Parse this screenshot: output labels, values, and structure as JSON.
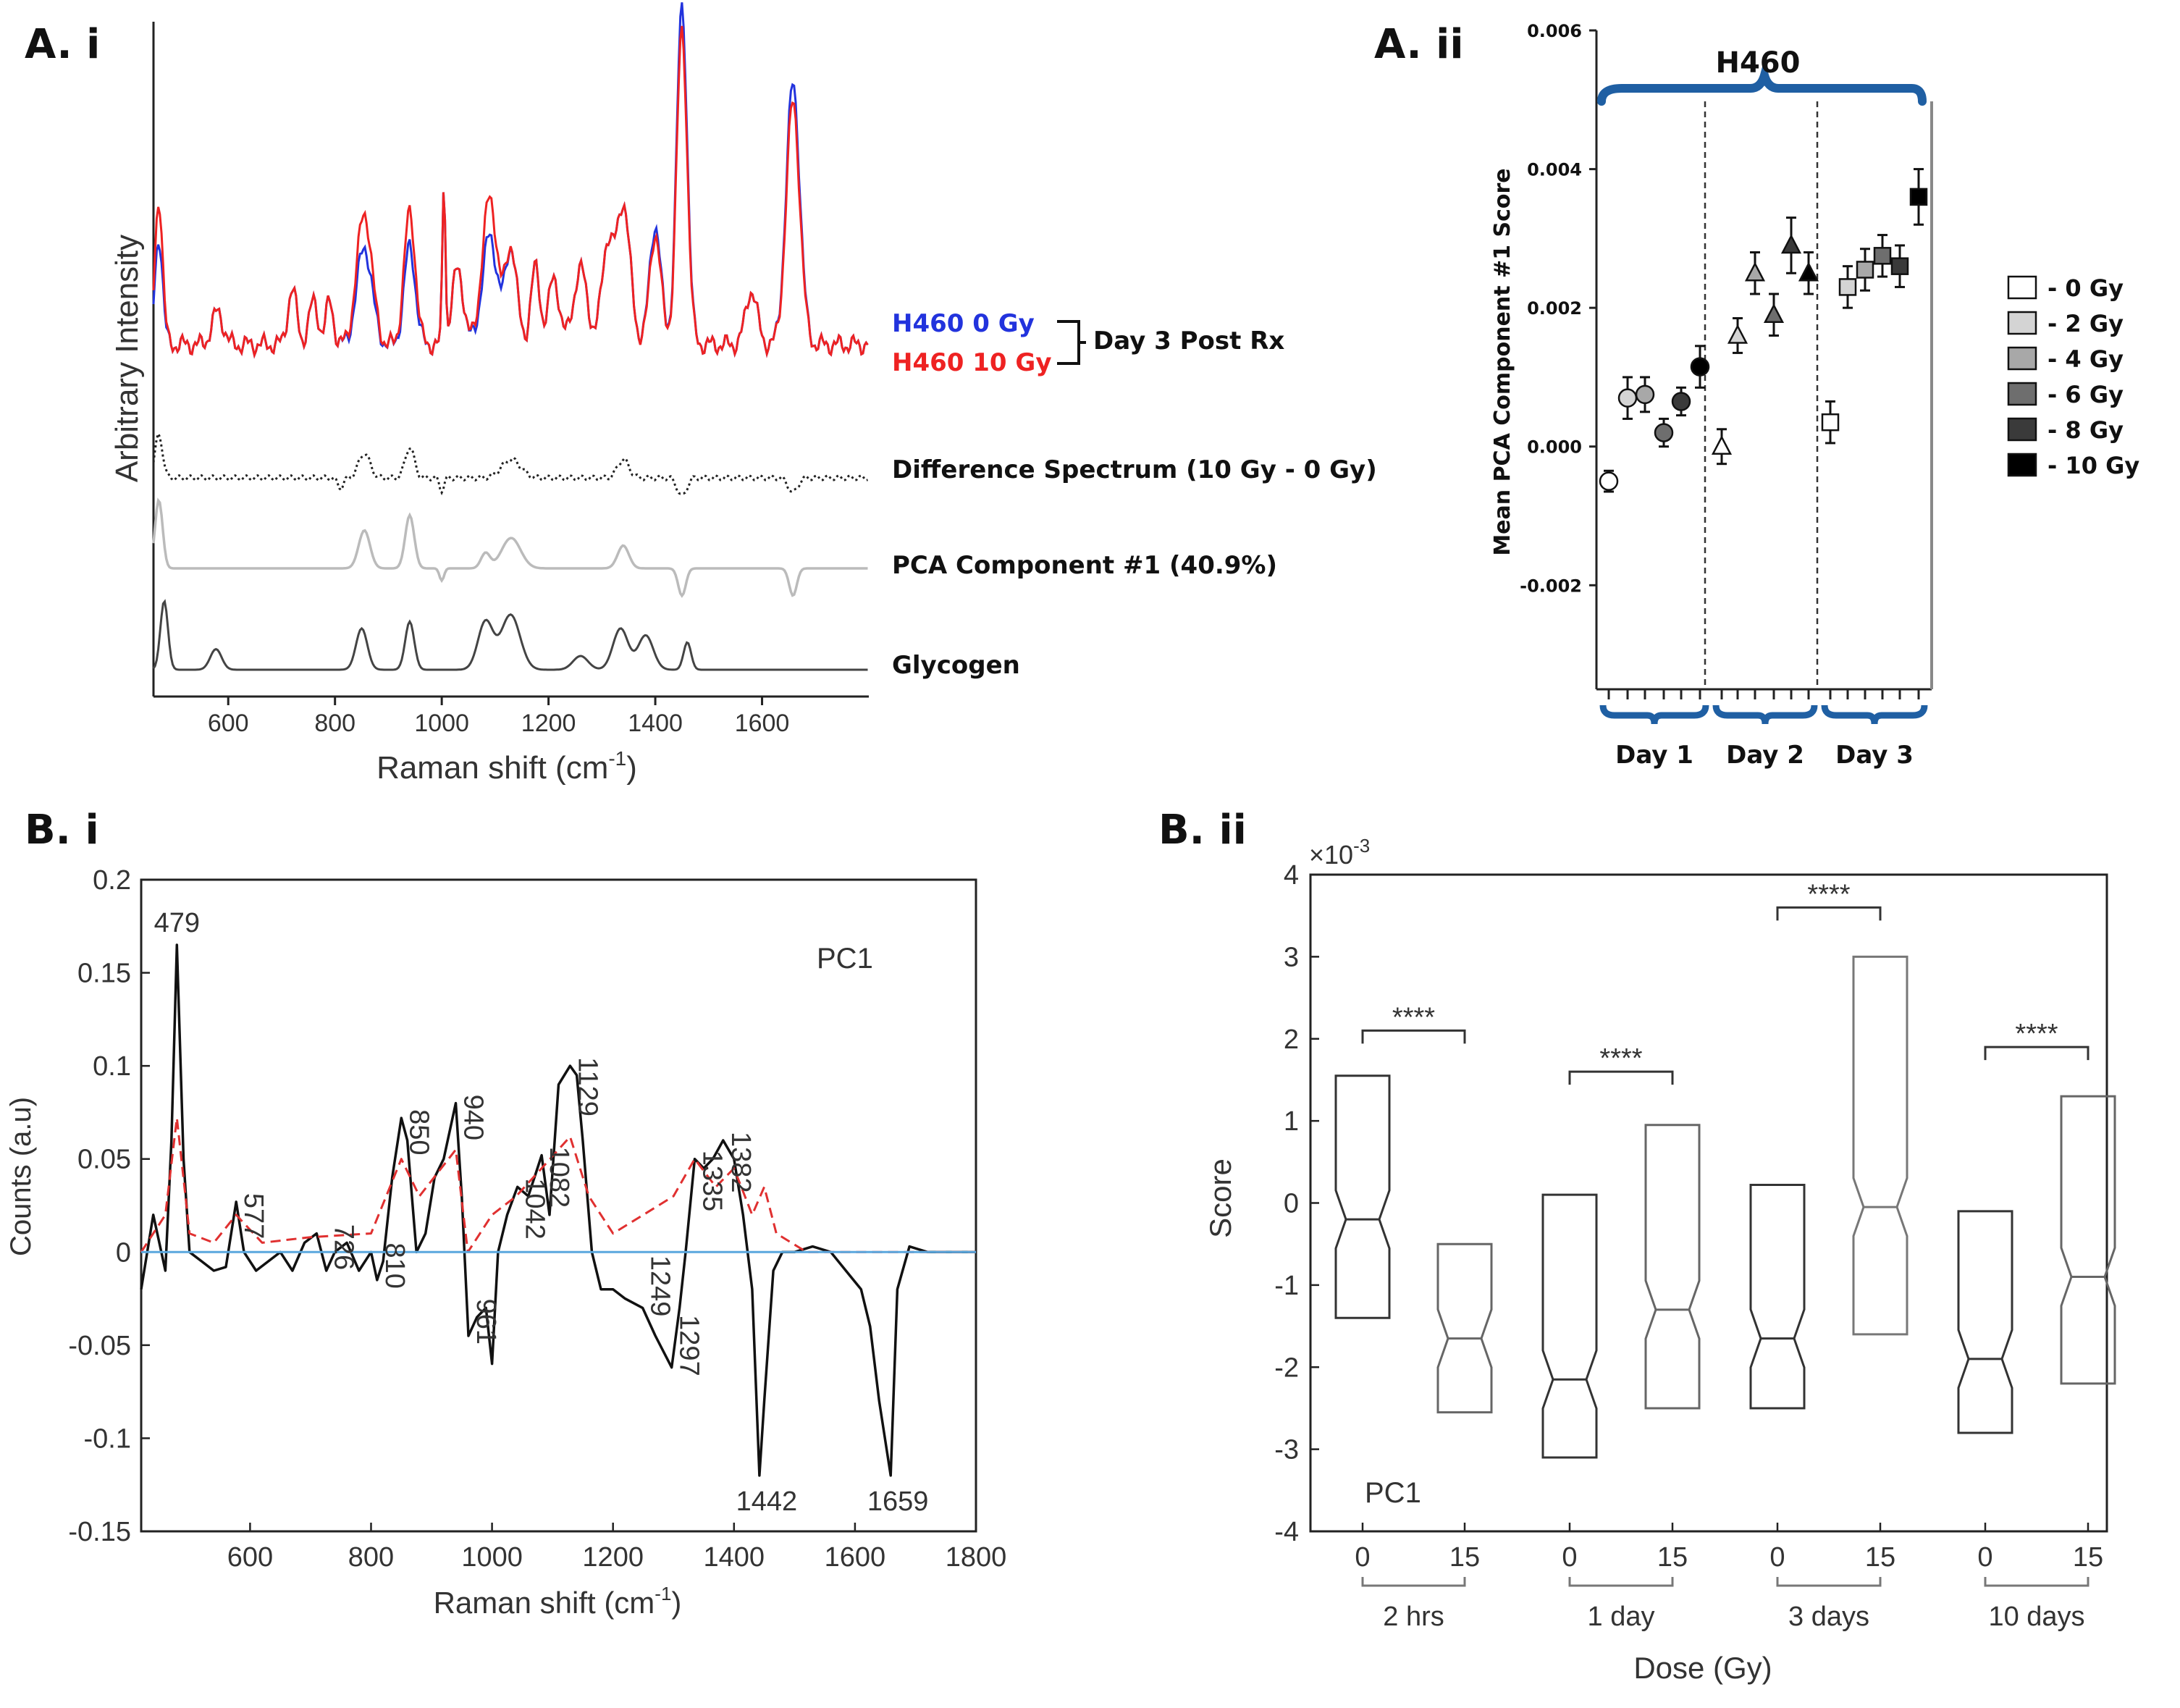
{
  "panels": {
    "a_i": "A. i",
    "a_ii": "A. ii",
    "b_i": "B. i",
    "b_ii": "B. ii"
  },
  "chart_data": [
    {
      "id": "A.i",
      "type": "line",
      "ylabel": "Arbitrary Intensity",
      "xlabel": "Raman shift (cm",
      "xlabel_sup": "-1",
      "xlabel_end": ")",
      "xlim": [
        460,
        1800
      ],
      "xticks": [
        600,
        800,
        1000,
        1200,
        1400,
        1600
      ],
      "xtick_labels": [
        "600",
        "800",
        "1000",
        "1200",
        "1400",
        "1600"
      ],
      "legend": {
        "blue_label": "H460 0 Gy",
        "red_label": "H460 10 Gy",
        "bracket_label": "Day 3 Post Rx",
        "blue_color": "#2233dd",
        "red_color": "#ee2222"
      },
      "traces": [
        {
          "name": "Difference Spectrum (10 Gy - 0 Gy)",
          "style": "dotted",
          "color": "#222222"
        },
        {
          "name": "PCA Component #1 (40.9%)",
          "style": "solid",
          "color": "#bbbbbb"
        },
        {
          "name": "Glycogen",
          "style": "solid",
          "color": "#444444"
        }
      ]
    },
    {
      "id": "A.ii",
      "type": "scatter",
      "title": "H460",
      "ylabel": "Mean PCA Component #1 Score",
      "ylim": [
        -0.0035,
        0.006
      ],
      "yticks": [
        -0.002,
        0,
        0.002,
        0.004,
        0.006
      ],
      "ytick_labels": [
        "-0.002",
        "0.000",
        "0.002",
        "0.004",
        "0.006"
      ],
      "groups": [
        "Day 1",
        "Day 2",
        "Day 3"
      ],
      "doses": [
        "0 Gy",
        "2 Gy",
        "4 Gy",
        "6 Gy",
        "8 Gy",
        "10 Gy"
      ],
      "legend_labels": [
        "- 0 Gy",
        "- 2 Gy",
        "- 4 Gy",
        "- 6 Gy",
        "- 8 Gy",
        "- 10 Gy"
      ],
      "dose_colors": [
        "#ffffff",
        "#d4d4d4",
        "#a8a8a8",
        "#6e6e6e",
        "#3a3a3a",
        "#000000"
      ],
      "brace_color": "#1f5fa3",
      "series": [
        {
          "group": "Day 1",
          "marker": "circle",
          "values": [
            -0.0005,
            0.0007,
            0.00075,
            0.0002,
            0.00065,
            0.00115
          ],
          "errors": [
            0.00015,
            0.0003,
            0.00025,
            0.0002,
            0.0002,
            0.0003
          ]
        },
        {
          "group": "Day 2",
          "marker": "triangle",
          "values": [
            0.0,
            0.0016,
            0.0025,
            0.0019,
            0.0029,
            0.0025
          ],
          "errors": [
            0.00025,
            0.00025,
            0.0003,
            0.0003,
            0.0004,
            0.0003
          ]
        },
        {
          "group": "Day 3",
          "marker": "square",
          "values": [
            0.00035,
            0.0023,
            0.00255,
            0.00275,
            0.0026,
            0.0036
          ],
          "errors": [
            0.0003,
            0.0003,
            0.0003,
            0.0003,
            0.0003,
            0.0004
          ]
        }
      ]
    },
    {
      "id": "B.i",
      "type": "line",
      "xlabel": "Raman shift (cm",
      "xlabel_sup": "-1",
      "xlabel_end": ")",
      "ylabel": "Counts (a.u)",
      "annotation": "PC1",
      "xlim": [
        420,
        1800
      ],
      "ylim": [
        -0.15,
        0.2
      ],
      "xticks": [
        600,
        800,
        1000,
        1200,
        1400,
        1600,
        1800
      ],
      "xtick_labels": [
        "600",
        "800",
        "1000",
        "1200",
        "1400",
        "1600",
        "1800"
      ],
      "yticks": [
        -0.15,
        -0.1,
        -0.05,
        0,
        0.05,
        0.1,
        0.15,
        0.2
      ],
      "ytick_labels": [
        "-0.15",
        "-0.1",
        "-0.05",
        "0",
        "0.05",
        "0.1",
        "0.15",
        "0.2"
      ],
      "peaks": [
        {
          "x": 479,
          "y": 0.165,
          "label": "479",
          "rot": 0
        },
        {
          "x": 577,
          "y": 0.027,
          "label": "577",
          "rot": -90
        },
        {
          "x": 726,
          "y": -0.005,
          "label": "726",
          "rot": -90
        },
        {
          "x": 810,
          "y": -0.015,
          "label": "810",
          "rot": -90
        },
        {
          "x": 850,
          "y": 0.072,
          "label": "850",
          "rot": -90
        },
        {
          "x": 940,
          "y": 0.08,
          "label": "940",
          "rot": -90
        },
        {
          "x": 961,
          "y": -0.045,
          "label": "961",
          "rot": -90
        },
        {
          "x": 1042,
          "y": 0.035,
          "label": "1042",
          "rot": -90
        },
        {
          "x": 1082,
          "y": 0.052,
          "label": "1082",
          "rot": -90
        },
        {
          "x": 1129,
          "y": 0.1,
          "label": "1129",
          "rot": -90
        },
        {
          "x": 1249,
          "y": -0.03,
          "label": "1249",
          "rot": -90
        },
        {
          "x": 1297,
          "y": -0.062,
          "label": "1297",
          "rot": -90
        },
        {
          "x": 1335,
          "y": 0.05,
          "label": "1335",
          "rot": -90
        },
        {
          "x": 1382,
          "y": 0.06,
          "label": "1382",
          "rot": -90
        },
        {
          "x": 1442,
          "y": -0.12,
          "label": "1442",
          "rot": 0
        },
        {
          "x": 1659,
          "y": -0.12,
          "label": "1659",
          "rot": 0
        }
      ],
      "series": [
        {
          "name": "PC1",
          "color": "#111111",
          "x": [
            420,
            440,
            460,
            470,
            479,
            490,
            500,
            520,
            540,
            560,
            577,
            590,
            610,
            630,
            650,
            670,
            690,
            710,
            726,
            740,
            760,
            780,
            800,
            810,
            820,
            835,
            850,
            860,
            875,
            890,
            905,
            920,
            940,
            950,
            961,
            975,
            990,
            1000,
            1010,
            1025,
            1042,
            1060,
            1075,
            1082,
            1095,
            1110,
            1129,
            1140,
            1150,
            1165,
            1180,
            1200,
            1220,
            1249,
            1270,
            1297,
            1310,
            1320,
            1335,
            1350,
            1365,
            1382,
            1400,
            1415,
            1430,
            1442,
            1450,
            1465,
            1480,
            1500,
            1530,
            1560,
            1590,
            1610,
            1625,
            1640,
            1659,
            1670,
            1690,
            1720,
            1760,
            1800
          ],
          "y": [
            -0.02,
            0.02,
            -0.01,
            0.06,
            0.165,
            0.05,
            0.0,
            -0.005,
            -0.01,
            -0.008,
            0.027,
            0.0,
            -0.01,
            -0.005,
            0.0,
            -0.01,
            0.005,
            0.01,
            -0.01,
            0.0,
            0.005,
            -0.01,
            0.0,
            -0.015,
            -0.005,
            0.04,
            0.072,
            0.06,
            0.0,
            0.01,
            0.04,
            0.05,
            0.08,
            0.03,
            -0.045,
            -0.035,
            -0.03,
            -0.06,
            0.0,
            0.02,
            0.035,
            0.03,
            0.045,
            0.052,
            0.02,
            0.09,
            0.1,
            0.095,
            0.06,
            0.0,
            -0.02,
            -0.02,
            -0.025,
            -0.03,
            -0.045,
            -0.062,
            -0.03,
            0.0,
            0.05,
            0.045,
            0.05,
            0.06,
            0.05,
            0.02,
            -0.02,
            -0.12,
            -0.08,
            -0.01,
            0.0,
            0.0,
            0.003,
            0.0,
            -0.012,
            -0.02,
            -0.04,
            -0.08,
            -0.12,
            -0.02,
            0.003,
            0.0,
            0.0,
            0.0
          ]
        },
        {
          "name": "mean",
          "color": "#e03030",
          "style": "dashed",
          "x": [
            420,
            440,
            460,
            479,
            500,
            540,
            577,
            620,
            700,
            800,
            850,
            880,
            940,
            960,
            1000,
            1040,
            1082,
            1129,
            1160,
            1200,
            1250,
            1300,
            1335,
            1370,
            1400,
            1430,
            1450,
            1470,
            1520,
            1600,
            1700,
            1800
          ],
          "y": [
            0.0,
            0.01,
            0.02,
            0.072,
            0.01,
            0.005,
            0.02,
            0.005,
            0.008,
            0.01,
            0.05,
            0.03,
            0.055,
            0.0,
            0.02,
            0.03,
            0.045,
            0.062,
            0.03,
            0.01,
            0.02,
            0.03,
            0.05,
            0.035,
            0.045,
            0.02,
            0.035,
            0.01,
            0.0,
            0.0,
            0.0,
            0.0
          ]
        },
        {
          "name": "baseline",
          "color": "#5aa7de",
          "x": [
            420,
            1800
          ],
          "y": [
            0,
            0
          ]
        }
      ]
    },
    {
      "id": "B.ii",
      "type": "box",
      "exponent": "×10",
      "exponent_sup": "-3",
      "ylabel": "Score",
      "xlabel": "Dose (Gy)",
      "annotation": "PC1",
      "ylim": [
        -4,
        4
      ],
      "yticks": [
        -4,
        -3,
        -2,
        -1,
        0,
        1,
        2,
        3,
        4
      ],
      "ytick_labels": [
        "-4",
        "-3",
        "-2",
        "-1",
        "0",
        "1",
        "2",
        "3",
        "4"
      ],
      "groups": [
        "2 hrs",
        "1 day",
        "3 days",
        "10 days"
      ],
      "categories": [
        "0",
        "15",
        "0",
        "15",
        "0",
        "15",
        "0",
        "15"
      ],
      "significance": [
        "****",
        "****",
        "****",
        "****"
      ],
      "significance_y": [
        2.1,
        1.6,
        3.6,
        1.9
      ],
      "boxes": [
        {
          "dose": "0",
          "q1": -1.4,
          "median": -0.2,
          "q3": 1.55,
          "color": "#333333"
        },
        {
          "dose": "15",
          "q1": -2.55,
          "median": -1.65,
          "q3": -0.5,
          "color": "#666666"
        },
        {
          "dose": "0",
          "q1": -3.1,
          "median": -2.15,
          "q3": 0.1,
          "color": "#333333"
        },
        {
          "dose": "15",
          "q1": -2.5,
          "median": -1.3,
          "q3": 0.95,
          "color": "#666666"
        },
        {
          "dose": "0",
          "q1": -2.5,
          "median": -1.65,
          "q3": 0.22,
          "color": "#333333"
        },
        {
          "dose": "15",
          "q1": -1.6,
          "median": -0.05,
          "q3": 3.0,
          "color": "#777777"
        },
        {
          "dose": "0",
          "q1": -2.8,
          "median": -1.9,
          "q3": -0.1,
          "color": "#333333"
        },
        {
          "dose": "15",
          "q1": -2.2,
          "median": -0.9,
          "q3": 1.3,
          "color": "#666666"
        }
      ]
    }
  ]
}
